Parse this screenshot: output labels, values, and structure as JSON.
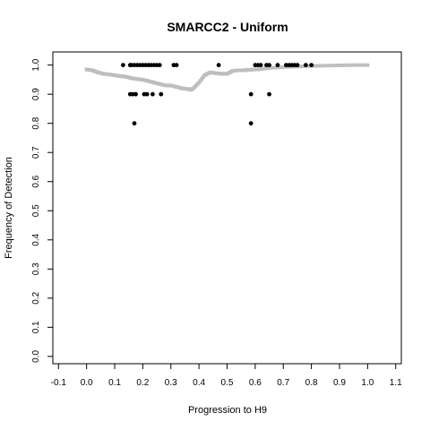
{
  "chart_data": {
    "type": "scatter",
    "title": "SMARCC2 - Uniform",
    "xlabel": "Progression to H9",
    "ylabel": "Frequency of Detection",
    "xlim": [
      -0.12,
      1.12
    ],
    "ylim": [
      -0.025,
      1.045
    ],
    "x_ticks": [
      "-0.1",
      "0.0",
      "0.1",
      "0.2",
      "0.3",
      "0.4",
      "0.5",
      "0.6",
      "0.7",
      "0.8",
      "0.9",
      "1.0",
      "1.1"
    ],
    "y_ticks": [
      "0.0",
      "0.1",
      "0.2",
      "0.3",
      "0.4",
      "0.5",
      "0.6",
      "0.7",
      "0.8",
      "0.9",
      "1.0"
    ],
    "grid": false,
    "legend": "none",
    "colors": {
      "points": "#000000",
      "trend": "#bebebe",
      "axis": "#000000"
    },
    "series": [
      {
        "kind": "points",
        "x": [
          0.13,
          0.155,
          0.16,
          0.17,
          0.18,
          0.19,
          0.2,
          0.21,
          0.22,
          0.23,
          0.24,
          0.25,
          0.26,
          0.31,
          0.32,
          0.47,
          0.6,
          0.61,
          0.62,
          0.64,
          0.65,
          0.68,
          0.71,
          0.72,
          0.73,
          0.74,
          0.75,
          0.78,
          0.8,
          0.155,
          0.165,
          0.175,
          0.205,
          0.215,
          0.235,
          0.265,
          0.585,
          0.65,
          0.17,
          0.585
        ],
        "y": [
          1.0,
          1.0,
          1.0,
          1.0,
          1.0,
          1.0,
          1.0,
          1.0,
          1.0,
          1.0,
          1.0,
          1.0,
          1.0,
          1.0,
          1.0,
          1.0,
          1.0,
          1.0,
          1.0,
          1.0,
          1.0,
          1.0,
          1.0,
          1.0,
          1.0,
          1.0,
          1.0,
          1.0,
          1.0,
          0.9,
          0.9,
          0.9,
          0.9,
          0.9,
          0.9,
          0.9,
          0.9,
          0.9,
          0.8,
          0.8
        ]
      },
      {
        "kind": "trend",
        "x": [
          0.0,
          0.02,
          0.04,
          0.06,
          0.08,
          0.1,
          0.12,
          0.14,
          0.16,
          0.18,
          0.2,
          0.22,
          0.24,
          0.26,
          0.28,
          0.3,
          0.32,
          0.34,
          0.36,
          0.37,
          0.38,
          0.4,
          0.42,
          0.44,
          0.46,
          0.48,
          0.5,
          0.52,
          0.54,
          0.56,
          0.58,
          0.6,
          0.62,
          0.65,
          0.7,
          0.75,
          0.8,
          0.85,
          0.9,
          0.95,
          1.0
        ],
        "y": [
          0.985,
          0.982,
          0.975,
          0.97,
          0.968,
          0.965,
          0.962,
          0.96,
          0.955,
          0.952,
          0.95,
          0.945,
          0.94,
          0.935,
          0.93,
          0.93,
          0.925,
          0.92,
          0.918,
          0.915,
          0.92,
          0.94,
          0.965,
          0.975,
          0.972,
          0.97,
          0.97,
          0.98,
          0.982,
          0.982,
          0.984,
          0.985,
          0.986,
          0.99,
          0.993,
          0.995,
          0.997,
          0.998,
          0.999,
          1.0,
          1.0
        ]
      }
    ]
  }
}
